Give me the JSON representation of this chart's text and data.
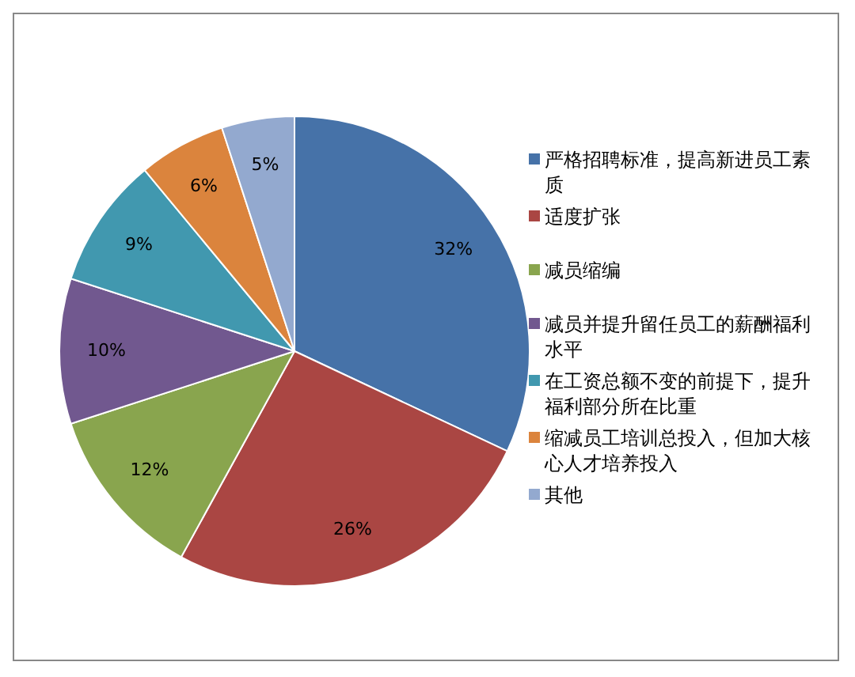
{
  "chart_data": {
    "type": "pie",
    "categories": [
      "严格招聘标准，提高新进员工素质",
      "适度扩张",
      "减员缩编",
      "减员并提升留任员工的薪酬福利水平",
      "在工资总额不变的前提下，提升福利部分所在比重",
      "缩减员工培训总投入，但加大核心人才培养投入",
      "其他"
    ],
    "values": [
      32,
      26,
      12,
      10,
      9,
      6,
      5
    ],
    "colors": [
      "#4672a8",
      "#aa4643",
      "#89a54e",
      "#71588f",
      "#4198af",
      "#db843d",
      "#93a9cf"
    ],
    "value_labels": [
      "32%",
      "26%",
      "12%",
      "10%",
      "9%",
      "6%",
      "5%"
    ],
    "legend": "right"
  }
}
